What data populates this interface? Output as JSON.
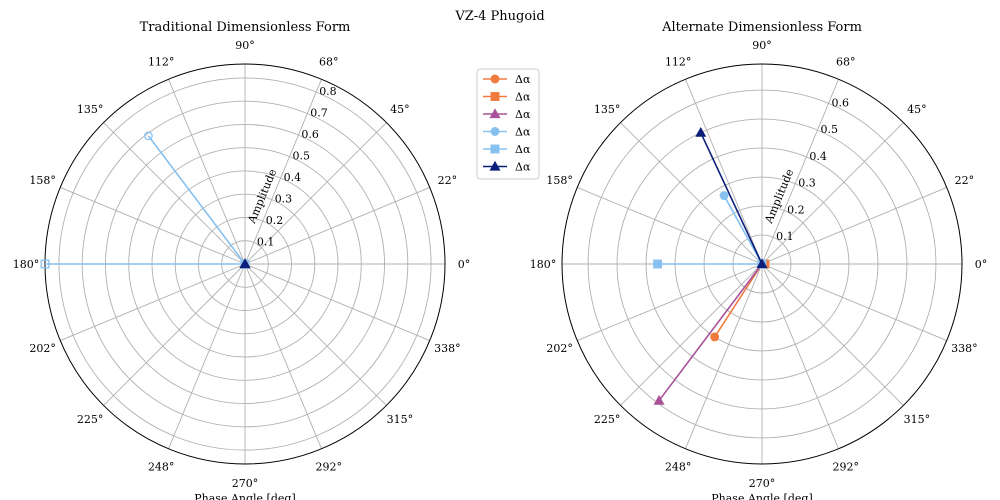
{
  "suptitle": "VZ-4 Phugoid",
  "chart_data": [
    {
      "type": "polar-line",
      "title": "Traditional Dimensionless Form",
      "xlabel": "Phase Angle [deg]",
      "ylabel": "Amplitude",
      "rlim": [
        0,
        0.86
      ],
      "radial_ticks": [
        0.1,
        0.2,
        0.3,
        0.4,
        0.5,
        0.6,
        0.7,
        0.8
      ],
      "angle_tick_labels": [
        "0°",
        "22°",
        "45°",
        "68°",
        "90°",
        "112°",
        "135°",
        "158°",
        "180°",
        "202°",
        "225°",
        "248°",
        "270°",
        "292°",
        "315°",
        "338°"
      ],
      "grid": true,
      "series": [
        {
          "name": "Δα",
          "color": "#f07b3f",
          "marker": "circle",
          "fill": true,
          "phase": 0,
          "amplitude": 0
        },
        {
          "name": "Δα",
          "color": "#f07b3f",
          "marker": "square",
          "fill": true,
          "phase": 0,
          "amplitude": 0
        },
        {
          "name": "Δα",
          "color": "#a8529a",
          "marker": "triangle",
          "fill": true,
          "phase": 0,
          "amplitude": 0
        },
        {
          "name": "Δα",
          "color": "#86c1f1",
          "marker": "circle",
          "fill": false,
          "phase": 127,
          "amplitude": 0.69
        },
        {
          "name": "Δα",
          "color": "#86c1f1",
          "marker": "square",
          "fill": false,
          "phase": 180,
          "amplitude": 0.86
        },
        {
          "name": "Δα",
          "color": "#0b1f7a",
          "marker": "triangle",
          "fill": true,
          "phase": 0,
          "amplitude": 0
        }
      ]
    },
    {
      "type": "polar-line",
      "title": "Alternate Dimensionless Form",
      "xlabel": "Phase Angle [deg]",
      "ylabel": "Amplitude",
      "rlim": [
        0,
        0.69
      ],
      "radial_ticks": [
        0.1,
        0.2,
        0.3,
        0.4,
        0.5,
        0.6
      ],
      "angle_tick_labels": [
        "0°",
        "22°",
        "45°",
        "68°",
        "90°",
        "112°",
        "135°",
        "158°",
        "180°",
        "202°",
        "225°",
        "248°",
        "270°",
        "292°",
        "315°",
        "338°"
      ],
      "grid": true,
      "series": [
        {
          "name": "Δα",
          "color": "#f07b3f",
          "marker": "circle",
          "fill": true,
          "phase": 237,
          "amplitude": 0.3
        },
        {
          "name": "Δα",
          "color": "#f07b3f",
          "marker": "square",
          "fill": true,
          "phase": 0,
          "amplitude": 0.01
        },
        {
          "name": "Δα",
          "color": "#a8529a",
          "marker": "triangle",
          "fill": true,
          "phase": 233,
          "amplitude": 0.59
        },
        {
          "name": "Δα",
          "color": "#86c1f1",
          "marker": "circle",
          "fill": true,
          "phase": 119,
          "amplitude": 0.27
        },
        {
          "name": "Δα",
          "color": "#86c1f1",
          "marker": "square",
          "fill": true,
          "phase": 180,
          "amplitude": 0.36
        },
        {
          "name": "Δα",
          "color": "#0b1f7a",
          "marker": "triangle",
          "fill": true,
          "phase": 115,
          "amplitude": 0.5
        }
      ]
    }
  ]
}
